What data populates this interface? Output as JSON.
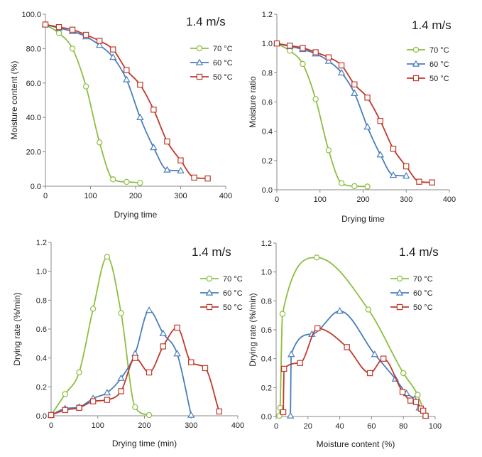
{
  "chart_data": [
    {
      "type": "line",
      "title": "1.4 m/s",
      "xlabel": "Drying time",
      "ylabel": "Moisture content (%)",
      "xlim": [
        0,
        400
      ],
      "ylim": [
        0,
        100
      ],
      "xticks": [
        "0",
        "100",
        "200",
        "300",
        "400"
      ],
      "yticks": [
        "0.0",
        "20.0",
        "40.0",
        "60.0",
        "80.0",
        "100.0"
      ],
      "legend_position": "right",
      "series": [
        {
          "name": "70 °C",
          "color": "#8cbf3f",
          "marker": "circle",
          "x": [
            0,
            30,
            60,
            90,
            120,
            150,
            180,
            210
          ],
          "y": [
            94,
            89,
            80,
            58,
            25.5,
            4,
            2.5,
            2
          ]
        },
        {
          "name": "60 °C",
          "color": "#4a7ebb",
          "marker": "triangle",
          "x": [
            0,
            30,
            60,
            90,
            120,
            150,
            180,
            210,
            240,
            270,
            300
          ],
          "y": [
            94,
            92,
            90,
            87,
            82,
            75,
            62,
            40,
            22.5,
            9.5,
            9
          ]
        },
        {
          "name": "50 °C",
          "color": "#c0392b",
          "marker": "square",
          "x": [
            0,
            30,
            60,
            90,
            120,
            150,
            180,
            210,
            240,
            270,
            300,
            330,
            360
          ],
          "y": [
            94,
            92.5,
            91,
            88,
            84.5,
            79.5,
            67.5,
            59,
            44.5,
            26,
            15,
            5,
            4.5
          ]
        }
      ]
    },
    {
      "type": "line",
      "title": "1.4 m/s",
      "xlabel": "Drying time",
      "ylabel": "Moisture ratio",
      "xlim": [
        0,
        400
      ],
      "ylim": [
        0,
        1.2
      ],
      "xticks": [
        "0",
        "100",
        "200",
        "300",
        "400"
      ],
      "yticks": [
        "0.0",
        "0.2",
        "0.4",
        "0.6",
        "0.8",
        "1.0",
        "1.2"
      ],
      "legend_position": "right",
      "series": [
        {
          "name": "70 °C",
          "color": "#8cbf3f",
          "marker": "circle",
          "x": [
            0,
            30,
            60,
            90,
            120,
            150,
            180,
            210
          ],
          "y": [
            1.0,
            0.95,
            0.86,
            0.62,
            0.27,
            0.045,
            0.025,
            0.022
          ]
        },
        {
          "name": "60 °C",
          "color": "#4a7ebb",
          "marker": "triangle",
          "x": [
            0,
            30,
            60,
            90,
            120,
            150,
            180,
            210,
            240,
            270,
            300
          ],
          "y": [
            1.0,
            0.98,
            0.96,
            0.93,
            0.88,
            0.8,
            0.66,
            0.43,
            0.24,
            0.1,
            0.095
          ]
        },
        {
          "name": "50 °C",
          "color": "#c0392b",
          "marker": "square",
          "x": [
            0,
            30,
            60,
            90,
            120,
            150,
            180,
            210,
            240,
            270,
            300,
            330,
            360
          ],
          "y": [
            1.0,
            0.985,
            0.97,
            0.94,
            0.905,
            0.85,
            0.72,
            0.63,
            0.47,
            0.28,
            0.16,
            0.055,
            0.05
          ]
        }
      ]
    },
    {
      "type": "line",
      "title": "1.4 m/s",
      "xlabel": "Drying time (min)",
      "ylabel": "Drying rate (%/min)",
      "xlim": [
        0,
        400
      ],
      "ylim": [
        0,
        1.2
      ],
      "xticks": [
        "0",
        "100",
        "200",
        "300",
        "400"
      ],
      "yticks": [
        "0.0",
        "0.2",
        "0.4",
        "0.6",
        "0.8",
        "1.0",
        "1.2"
      ],
      "legend_position": "right",
      "series": [
        {
          "name": "70 °C",
          "color": "#8cbf3f",
          "marker": "circle",
          "x": [
            0,
            30,
            60,
            90,
            120,
            150,
            180,
            210
          ],
          "y": [
            0.005,
            0.15,
            0.3,
            0.74,
            1.1,
            0.71,
            0.06,
            0.005
          ]
        },
        {
          "name": "60 °C",
          "color": "#4a7ebb",
          "marker": "triangle",
          "x": [
            0,
            30,
            60,
            90,
            120,
            150,
            180,
            210,
            240,
            270,
            300
          ],
          "y": [
            0.005,
            0.05,
            0.06,
            0.12,
            0.16,
            0.26,
            0.43,
            0.73,
            0.57,
            0.43,
            0.005
          ]
        },
        {
          "name": "50 °C",
          "color": "#c0392b",
          "marker": "square",
          "x": [
            0,
            30,
            60,
            90,
            120,
            150,
            180,
            210,
            240,
            270,
            300,
            330,
            360
          ],
          "y": [
            0.005,
            0.04,
            0.055,
            0.1,
            0.11,
            0.17,
            0.4,
            0.3,
            0.48,
            0.61,
            0.37,
            0.33,
            0.03
          ]
        }
      ]
    },
    {
      "type": "line",
      "title": "1.4 m/s",
      "xlabel": "Moisture content (%)",
      "ylabel": "Drying rate (%/min)",
      "xlim": [
        0,
        100
      ],
      "ylim": [
        0,
        1.2
      ],
      "xticks": [
        "0",
        "20",
        "40",
        "60",
        "80",
        "100"
      ],
      "yticks": [
        "0.0",
        "0.2",
        "0.4",
        "0.6",
        "0.8",
        "1.0",
        "1.2"
      ],
      "legend_position": "right",
      "series": [
        {
          "name": "70 °C",
          "color": "#8cbf3f",
          "marker": "circle",
          "x": [
            2,
            2.5,
            4,
            25.5,
            58,
            80,
            89,
            94
          ],
          "y": [
            0.005,
            0.06,
            0.71,
            1.1,
            0.74,
            0.3,
            0.15,
            0.005
          ]
        },
        {
          "name": "60 °C",
          "color": "#4a7ebb",
          "marker": "triangle",
          "x": [
            9,
            9.5,
            22.5,
            40,
            62,
            75,
            82,
            87,
            90,
            92,
            94
          ],
          "y": [
            0.005,
            0.43,
            0.57,
            0.73,
            0.43,
            0.26,
            0.16,
            0.12,
            0.06,
            0.05,
            0.005
          ]
        },
        {
          "name": "50 °C",
          "color": "#c0392b",
          "marker": "square",
          "x": [
            4.5,
            5,
            15,
            26,
            44.5,
            59,
            67.5,
            79.5,
            84.5,
            88,
            91,
            92.5,
            94
          ],
          "y": [
            0.03,
            0.33,
            0.37,
            0.61,
            0.48,
            0.3,
            0.4,
            0.17,
            0.11,
            0.1,
            0.055,
            0.04,
            0.005
          ]
        }
      ]
    }
  ]
}
